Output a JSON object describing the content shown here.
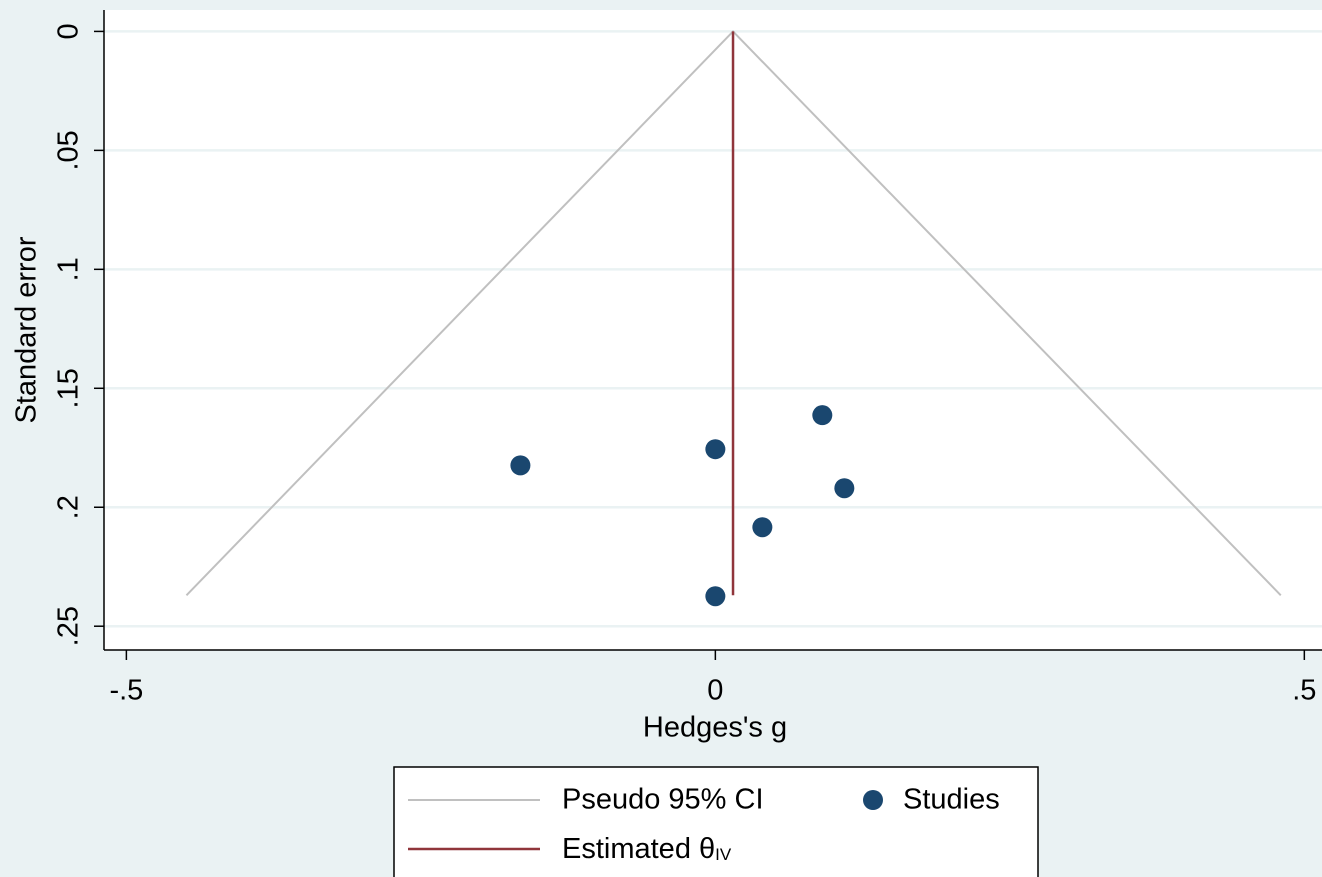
{
  "chart_data": {
    "type": "scatter",
    "xlabel": "Hedges's g",
    "ylabel": "Standard error",
    "xlim": [
      -0.519,
      0.515
    ],
    "ylim": [
      0.26,
      -0.009
    ],
    "xticks": [
      {
        "value": -0.5,
        "label": "-.5"
      },
      0,
      {
        "value": 0.5,
        "label": ".5"
      }
    ],
    "yticks": [
      0,
      {
        "value": 0.05,
        "label": ".05"
      },
      {
        "value": 0.1,
        "label": ".1"
      },
      {
        "value": 0.15,
        "label": ".15"
      },
      {
        "value": 0.2,
        "label": ".2"
      },
      {
        "value": 0.25,
        "label": ".25"
      }
    ],
    "grid": true,
    "lines": [
      {
        "name": "Pseudo 95% CI",
        "color": "#c0c0c0",
        "x": [
          -0.449,
          0.015,
          0.48
        ],
        "y": [
          0.237,
          0,
          0.237
        ]
      },
      {
        "name": "Estimated θ",
        "subscript": "IV",
        "color": "#90353b",
        "x": [
          0.015,
          0.015
        ],
        "y": [
          0,
          0.237
        ]
      }
    ],
    "series": [
      {
        "name": "Studies",
        "color": "#1a476f",
        "x": [
          -0.1655,
          0.0,
          0.0908,
          0.1095,
          0.0399,
          0.0
        ],
        "y": [
          0.1824,
          0.1756,
          0.1613,
          0.192,
          0.2084,
          0.2374
        ]
      }
    ]
  }
}
